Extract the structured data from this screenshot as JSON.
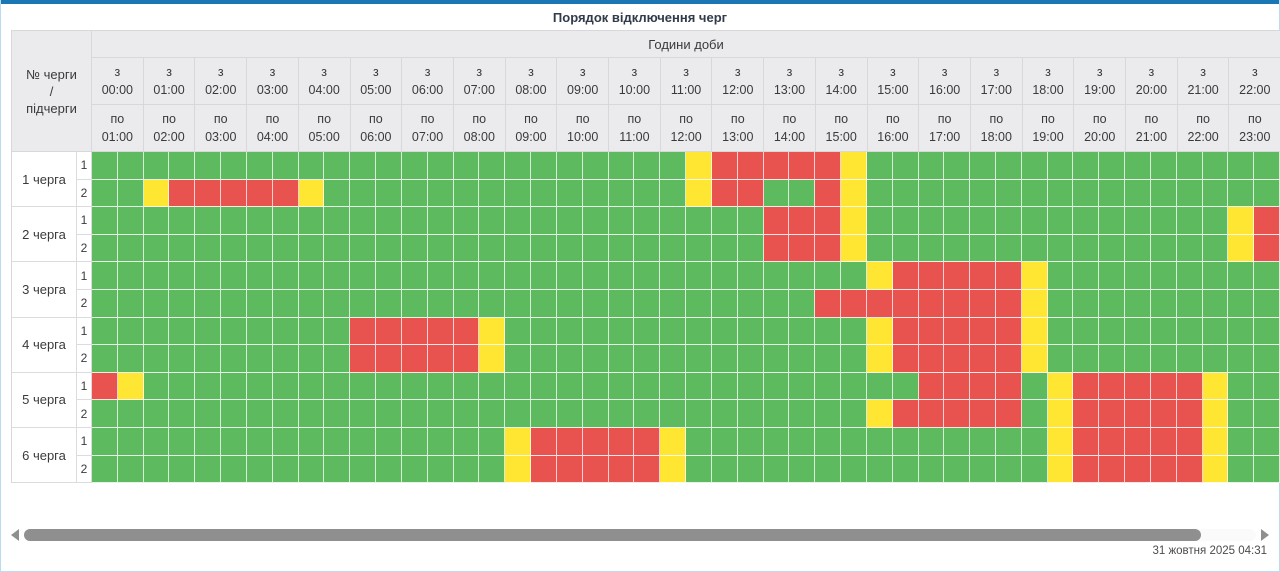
{
  "title": "Порядок відключення черг",
  "colors": {
    "topbar": "#1b76b5",
    "on_green": "#5dba5f",
    "maybe_yellow": "#ffe633",
    "off_red": "#e85350",
    "header_bg": "#ebebee"
  },
  "header": {
    "corner_lines": [
      "№ черги",
      "/",
      "підчерги"
    ],
    "group_label": "Години доби",
    "from_prefix": "з",
    "to_prefix": "по",
    "hours": [
      {
        "from": "00:00",
        "to": "01:00"
      },
      {
        "from": "01:00",
        "to": "02:00"
      },
      {
        "from": "02:00",
        "to": "03:00"
      },
      {
        "from": "03:00",
        "to": "04:00"
      },
      {
        "from": "04:00",
        "to": "05:00"
      },
      {
        "from": "05:00",
        "to": "06:00"
      },
      {
        "from": "06:00",
        "to": "07:00"
      },
      {
        "from": "07:00",
        "to": "08:00"
      },
      {
        "from": "08:00",
        "to": "09:00"
      },
      {
        "from": "09:00",
        "to": "10:00"
      },
      {
        "from": "10:00",
        "to": "11:00"
      },
      {
        "from": "11:00",
        "to": "12:00"
      },
      {
        "from": "12:00",
        "to": "13:00"
      },
      {
        "from": "13:00",
        "to": "14:00"
      },
      {
        "from": "14:00",
        "to": "15:00"
      },
      {
        "from": "15:00",
        "to": "16:00"
      },
      {
        "from": "16:00",
        "to": "17:00"
      },
      {
        "from": "17:00",
        "to": "18:00"
      },
      {
        "from": "18:00",
        "to": "19:00"
      },
      {
        "from": "19:00",
        "to": "20:00"
      },
      {
        "from": "20:00",
        "to": "21:00"
      },
      {
        "from": "21:00",
        "to": "22:00"
      },
      {
        "from": "22:00",
        "to": "23:00"
      }
    ]
  },
  "cell_legend": {
    "G": "power-on",
    "Y": "possible-outage",
    "R": "outage"
  },
  "queues": [
    {
      "label": "1 черга",
      "rows": [
        {
          "label": "1",
          "cells": "GGGGGGGGGGGGGGGGGGGGGGGYRRRRRYGGGGGGGGGGGGGGGG"
        },
        {
          "label": "2",
          "cells": "GGYRRRRRYGGGGGGGGGGGGGGYRRGGRYGGGGGGGGGGGGGGGG"
        }
      ]
    },
    {
      "label": "2 черга",
      "rows": [
        {
          "label": "1",
          "cells": "GGGGGGGGGGGGGGGGGGGGGGGGGGRRRYGGGGGGGGGGGGGGYR"
        },
        {
          "label": "2",
          "cells": "GGGGGGGGGGGGGGGGGGGGGGGGGGRRRYGGGGGGGGGGGGGGYR"
        }
      ]
    },
    {
      "label": "3 черга",
      "rows": [
        {
          "label": "1",
          "cells": "GGGGGGGGGGGGGGGGGGGGGGGGGGGGGGYRRRRRYGGGGGGGGG"
        },
        {
          "label": "2",
          "cells": "GGGGGGGGGGGGGGGGGGGGGGGGGGGGRRRRRRRRYGGGGGGGGG"
        }
      ]
    },
    {
      "label": "4 черга",
      "rows": [
        {
          "label": "1",
          "cells": "GGGGGGGGGGRRRRRYGGGGGGGGGGGGGGYRRRRRYGGGGGGGGG"
        },
        {
          "label": "2",
          "cells": "GGGGGGGGGGRRRRRYGGGGGGGGGGGGGGYRRRRRYGGGGGGGGG"
        }
      ]
    },
    {
      "label": "5 черга",
      "rows": [
        {
          "label": "1",
          "cells": "RYGGGGGGGGGGGGGGGGGGGGGGGGGGGGGGRRRRGYRRRRRYGG"
        },
        {
          "label": "2",
          "cells": "GGGGGGGGGGGGGGGGGGGGGGGGGGGGGGYRRRRRGYRRRRRYGG"
        }
      ]
    },
    {
      "label": "6 черга",
      "rows": [
        {
          "label": "1",
          "cells": "GGGGGGGGGGGGGGGGYRRRRRYGGGGGGGGGGGGGGYRRRRRYGG"
        },
        {
          "label": "2",
          "cells": "GGGGGGGGGGGGGGGGYRRRRRYGGGGGGGGGGGGGGYRRRRRYGG"
        }
      ]
    }
  ],
  "footer": {
    "timestamp": "31 жовтня 2025 04:31"
  }
}
